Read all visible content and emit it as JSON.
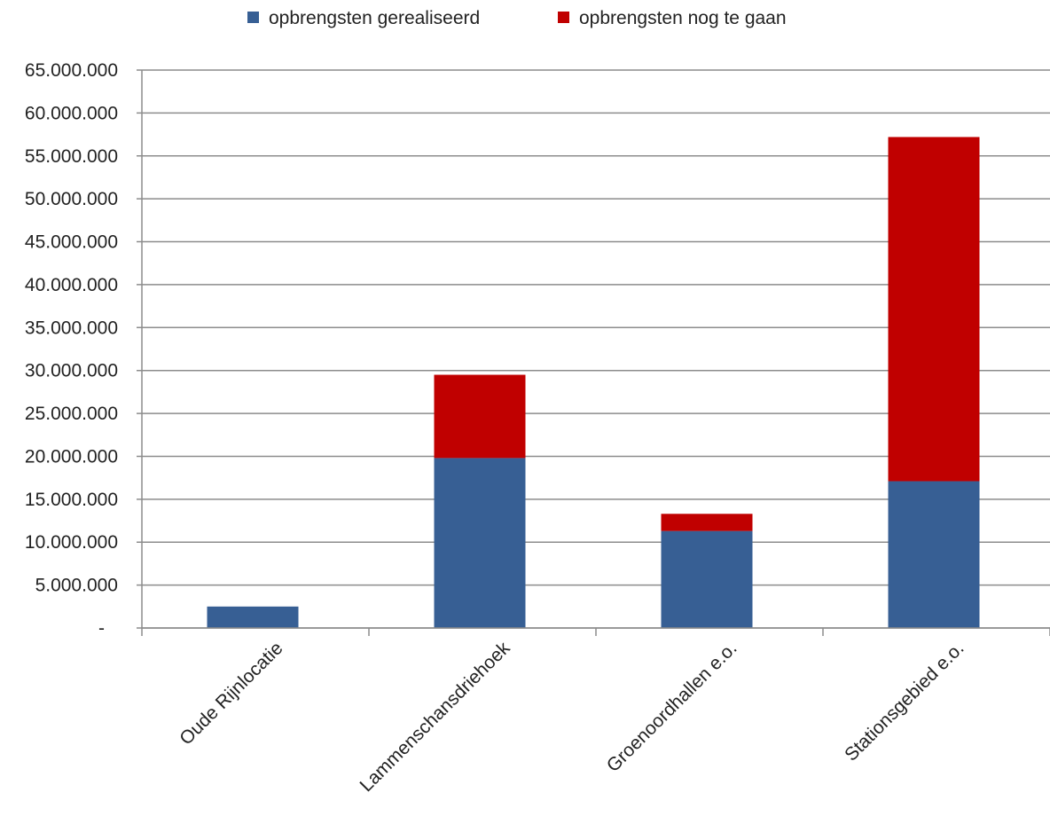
{
  "chart_data": {
    "type": "bar",
    "stacked": true,
    "categories": [
      "Oude Rijnlocatie",
      "Lammenschansdriehoek",
      "Groenoordhallen e.o.",
      "Stationsgebied e.o."
    ],
    "series": [
      {
        "name": "opbrengsten gerealiseerd",
        "color": "#375f94",
        "values": [
          2500000,
          19800000,
          11300000,
          17100000
        ]
      },
      {
        "name": "opbrengsten nog te gaan",
        "color": "#c00000",
        "values": [
          0,
          9700000,
          2000000,
          40100000
        ]
      }
    ],
    "ylim": [
      0,
      65000000
    ],
    "y_ticks": [
      0,
      5000000,
      10000000,
      15000000,
      20000000,
      25000000,
      30000000,
      35000000,
      40000000,
      45000000,
      50000000,
      55000000,
      60000000,
      65000000
    ],
    "y_tick_labels": [
      "-",
      "5.000.000",
      "10.000.000",
      "15.000.000",
      "20.000.000",
      "25.000.000",
      "30.000.000",
      "35.000.000",
      "40.000.000",
      "45.000.000",
      "50.000.000",
      "55.000.000",
      "60.000.000",
      "65.000.000"
    ],
    "grid": true,
    "legend_position": "top",
    "title": "",
    "xlabel": "",
    "ylabel": ""
  }
}
